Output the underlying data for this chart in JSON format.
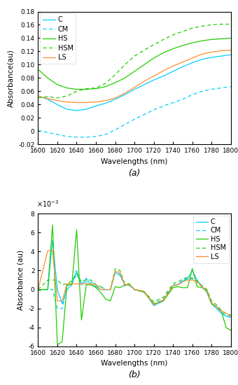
{
  "wavelengths_a": [
    1600,
    1610,
    1620,
    1630,
    1640,
    1650,
    1660,
    1670,
    1680,
    1690,
    1700,
    1710,
    1720,
    1730,
    1740,
    1750,
    1760,
    1770,
    1780,
    1790,
    1800
  ],
  "C_a": [
    0.053,
    0.048,
    0.04,
    0.033,
    0.031,
    0.033,
    0.038,
    0.042,
    0.048,
    0.055,
    0.063,
    0.07,
    0.077,
    0.083,
    0.09,
    0.097,
    0.103,
    0.108,
    0.111,
    0.113,
    0.115
  ],
  "CM_a": [
    0.001,
    -0.002,
    -0.005,
    -0.008,
    -0.009,
    -0.009,
    -0.008,
    -0.005,
    0.002,
    0.01,
    0.018,
    0.025,
    0.032,
    0.038,
    0.043,
    0.048,
    0.055,
    0.06,
    0.063,
    0.065,
    0.067
  ],
  "HS_a": [
    0.093,
    0.08,
    0.07,
    0.065,
    0.063,
    0.063,
    0.064,
    0.067,
    0.073,
    0.08,
    0.09,
    0.1,
    0.11,
    0.118,
    0.124,
    0.129,
    0.133,
    0.136,
    0.138,
    0.139,
    0.14
  ],
  "HSM_a": [
    0.05,
    0.052,
    0.05,
    0.053,
    0.06,
    0.064,
    0.065,
    0.072,
    0.085,
    0.1,
    0.113,
    0.122,
    0.13,
    0.138,
    0.145,
    0.15,
    0.155,
    0.158,
    0.16,
    0.161,
    0.161
  ],
  "LS_a": [
    0.053,
    0.049,
    0.046,
    0.044,
    0.043,
    0.043,
    0.044,
    0.046,
    0.05,
    0.057,
    0.066,
    0.075,
    0.083,
    0.091,
    0.098,
    0.104,
    0.11,
    0.116,
    0.119,
    0.121,
    0.122
  ],
  "wavelengths_b": [
    1600,
    1610,
    1615,
    1620,
    1625,
    1630,
    1635,
    1640,
    1645,
    1650,
    1655,
    1660,
    1665,
    1670,
    1675,
    1680,
    1685,
    1690,
    1695,
    1700,
    1710,
    1720,
    1730,
    1740,
    1745,
    1750,
    1755,
    1760,
    1765,
    1770,
    1775,
    1780,
    1785,
    1790,
    1795,
    1800
  ],
  "C_b": [
    0.0,
    0.0,
    0.0052,
    0.0,
    -0.0015,
    0.0,
    0.0005,
    0.002,
    0.0005,
    0.0012,
    0.0005,
    0.0003,
    0.0,
    0.0,
    0.0,
    0.0018,
    0.0015,
    0.0005,
    0.0005,
    0.0,
    -0.0002,
    -0.0017,
    -0.0012,
    0.0004,
    0.0005,
    0.0009,
    0.0011,
    0.002,
    0.001,
    0.0003,
    -0.0003,
    -0.0015,
    -0.002,
    -0.0025,
    -0.0028,
    -0.0028
  ],
  "CM_b": [
    0.0,
    0.0,
    0.0,
    -0.002,
    -0.002,
    0.0004,
    0.0006,
    0.0016,
    0.0006,
    0.0008,
    0.0008,
    0.0004,
    0.0003,
    0.0,
    0.0,
    0.0018,
    0.0016,
    0.0004,
    0.0004,
    0.0,
    -0.0002,
    -0.0015,
    -0.001,
    0.0005,
    0.0005,
    0.001,
    0.0012,
    0.0011,
    0.0008,
    0.0003,
    -0.0002,
    -0.0015,
    -0.0018,
    -0.0024,
    -0.0027,
    -0.003
  ],
  "HS_b": [
    0.0,
    0.0,
    0.0068,
    -0.0058,
    -0.0055,
    0.0005,
    0.0005,
    0.0063,
    -0.0032,
    0.0005,
    0.0005,
    0.0002,
    -0.0003,
    -0.001,
    -0.0012,
    0.0003,
    0.0002,
    0.0005,
    0.0005,
    0.0,
    -0.0003,
    -0.0015,
    -0.0012,
    0.0002,
    0.0003,
    0.0002,
    0.0002,
    0.0022,
    0.0003,
    0.0002,
    0.0,
    -0.0015,
    -0.0018,
    -0.0022,
    -0.004,
    -0.0043
  ],
  "HSM_b": [
    0.0,
    0.001,
    0.001,
    0.001,
    0.0005,
    0.0006,
    0.0009,
    0.0017,
    0.0008,
    0.001,
    0.001,
    0.0005,
    0.0003,
    0.0,
    0.0,
    0.0022,
    0.002,
    0.0006,
    0.0006,
    0.0,
    -0.0002,
    -0.0013,
    -0.0008,
    0.0006,
    0.0008,
    0.0011,
    0.0013,
    0.0012,
    0.0009,
    0.0004,
    0.0,
    -0.0012,
    -0.0016,
    -0.0022,
    -0.0025,
    -0.0027
  ],
  "LS_b": [
    0.0,
    0.0041,
    0.0041,
    -0.0012,
    -0.0012,
    0.0006,
    0.0006,
    0.0006,
    0.0006,
    0.0006,
    0.0006,
    0.0005,
    0.0,
    0.0,
    0.0,
    0.0019,
    0.0018,
    0.0005,
    0.0005,
    0.0,
    -0.0002,
    -0.0016,
    -0.0011,
    0.0004,
    0.0005,
    0.0008,
    0.001,
    0.001,
    0.0008,
    0.0003,
    -0.0002,
    -0.0014,
    -0.0018,
    -0.0023,
    -0.0025,
    -0.0028
  ],
  "colors": {
    "C": "#00CFFF",
    "CM": "#00CFFF",
    "HS": "#22CC00",
    "HSM": "#22CC00",
    "LS": "#FF8C30"
  },
  "xlabel": "Wavelengths (nm)",
  "ylabel_a": "Absorbance(au)",
  "ylabel_b": "Absorbance (au)",
  "ylim_a": [
    -0.02,
    0.18
  ],
  "ylim_b": [
    -0.006,
    0.008
  ],
  "xlim": [
    1600,
    1800
  ],
  "xticks": [
    1600,
    1620,
    1640,
    1660,
    1680,
    1700,
    1720,
    1740,
    1760,
    1780,
    1800
  ],
  "yticks_a": [
    -0.02,
    0.0,
    0.02,
    0.04,
    0.06,
    0.08,
    0.1,
    0.12,
    0.14,
    0.16,
    0.18
  ],
  "yticks_b": [
    -0.006,
    -0.004,
    -0.002,
    0.0,
    0.002,
    0.004,
    0.006,
    0.008
  ],
  "label_a": "(a)",
  "label_b": "(b)"
}
